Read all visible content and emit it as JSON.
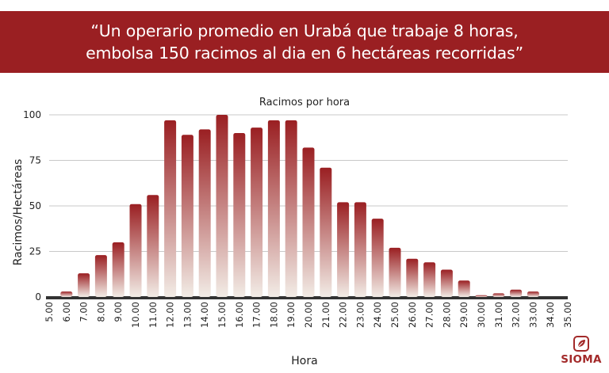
{
  "header": {
    "line1": "“Un operario promedio en Urabá que trabaje 8 horas,",
    "line2": "embolsa 150 racimos al dia en 6 hectáreas recorridas”"
  },
  "brand": {
    "name": "SIOMA",
    "color": "#a32a2a",
    "icon": "leaf-icon"
  },
  "colors": {
    "banner": "#9a1f22",
    "bar_top": "#9a1f22",
    "bar_bottom": "#f2ece6",
    "grid": "#c8c8c8",
    "axis": "#333333"
  },
  "chart_data": {
    "type": "bar",
    "title": "Racimos por hora",
    "xlabel": "Hora",
    "ylabel": "Racimos/Hectáreas",
    "ylim": [
      0,
      100
    ],
    "yticks": [
      0,
      25,
      50,
      75,
      100
    ],
    "grid": true,
    "categories": [
      "5.00",
      "6.00",
      "7.00",
      "8.00",
      "9.00",
      "10.00",
      "11.00",
      "12.00",
      "13.00",
      "14.00",
      "15.00",
      "16.00",
      "17.00",
      "18.00",
      "19.00",
      "20.00",
      "21.00",
      "22.00",
      "23.00",
      "24.00",
      "25.00",
      "26.00",
      "27.00",
      "28.00",
      "29.00",
      "30.00",
      "31.00",
      "32.00",
      "33.00",
      "34.00",
      "35.00"
    ],
    "values": [
      0,
      3,
      13,
      23,
      30,
      51,
      56,
      97,
      89,
      92,
      100,
      90,
      93,
      97,
      97,
      82,
      71,
      52,
      52,
      43,
      27,
      21,
      19,
      15,
      9,
      1,
      2,
      4,
      3,
      0,
      0
    ]
  }
}
